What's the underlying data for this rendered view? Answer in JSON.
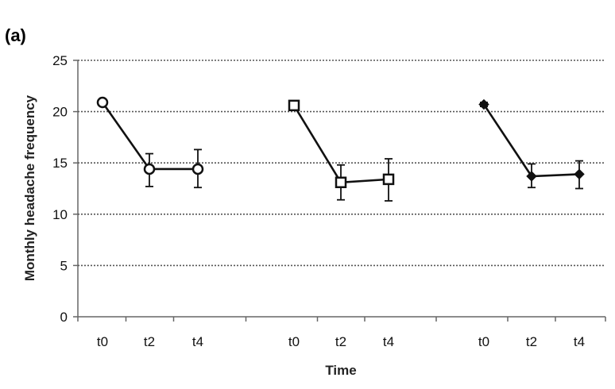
{
  "panel_label": "(a)",
  "chart_data": {
    "type": "line",
    "xlabel": "Time",
    "ylabel": "Monthly headache frequency",
    "ylim": [
      0,
      25
    ],
    "yticks": [
      0,
      5,
      10,
      15,
      20,
      25
    ],
    "grid": true,
    "grid_style": "dotted",
    "categories": [
      "t0",
      "t2",
      "t4",
      "t0",
      "t2",
      "t4",
      "t0",
      "t2",
      "t4"
    ],
    "series": [
      {
        "marker": "circle-open",
        "x": [
          "t0",
          "t2",
          "t4"
        ],
        "values": [
          20.9,
          14.4,
          14.4
        ],
        "error_low": [
          20.7,
          12.7,
          12.6
        ],
        "error_high": [
          21.1,
          15.9,
          16.3
        ]
      },
      {
        "marker": "square-open",
        "x": [
          "t0",
          "t2",
          "t4"
        ],
        "values": [
          20.6,
          13.1,
          13.4
        ],
        "error_low": [
          20.4,
          11.4,
          11.3
        ],
        "error_high": [
          20.8,
          14.8,
          15.4
        ]
      },
      {
        "marker": "diamond-filled",
        "x": [
          "t0",
          "t2",
          "t4"
        ],
        "values": [
          20.7,
          13.7,
          13.9
        ],
        "error_low": [
          20.5,
          12.6,
          12.5
        ],
        "error_high": [
          20.9,
          14.9,
          15.2
        ]
      }
    ],
    "colors": {
      "line": "#111111",
      "grid": "#555555",
      "axis": "#666666"
    }
  }
}
